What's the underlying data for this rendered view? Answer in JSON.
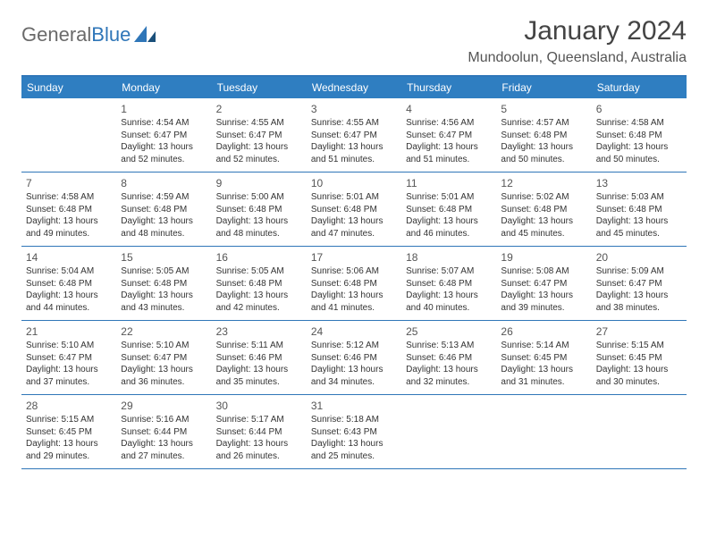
{
  "brand": {
    "part1": "General",
    "part2": "Blue"
  },
  "title": "January 2024",
  "location": "Mundoolun, Queensland, Australia",
  "colors": {
    "accent": "#2f76b8",
    "header_bg": "#2f7ec1",
    "text": "#333333"
  },
  "layout": {
    "columns": 7,
    "rows": 5,
    "first_day_column": 1
  },
  "daysOfWeek": [
    "Sunday",
    "Monday",
    "Tuesday",
    "Wednesday",
    "Thursday",
    "Friday",
    "Saturday"
  ],
  "weeks": [
    [
      null,
      {
        "n": "1",
        "sr": "Sunrise: 4:54 AM",
        "ss": "Sunset: 6:47 PM",
        "d1": "Daylight: 13 hours",
        "d2": "and 52 minutes."
      },
      {
        "n": "2",
        "sr": "Sunrise: 4:55 AM",
        "ss": "Sunset: 6:47 PM",
        "d1": "Daylight: 13 hours",
        "d2": "and 52 minutes."
      },
      {
        "n": "3",
        "sr": "Sunrise: 4:55 AM",
        "ss": "Sunset: 6:47 PM",
        "d1": "Daylight: 13 hours",
        "d2": "and 51 minutes."
      },
      {
        "n": "4",
        "sr": "Sunrise: 4:56 AM",
        "ss": "Sunset: 6:47 PM",
        "d1": "Daylight: 13 hours",
        "d2": "and 51 minutes."
      },
      {
        "n": "5",
        "sr": "Sunrise: 4:57 AM",
        "ss": "Sunset: 6:48 PM",
        "d1": "Daylight: 13 hours",
        "d2": "and 50 minutes."
      },
      {
        "n": "6",
        "sr": "Sunrise: 4:58 AM",
        "ss": "Sunset: 6:48 PM",
        "d1": "Daylight: 13 hours",
        "d2": "and 50 minutes."
      }
    ],
    [
      {
        "n": "7",
        "sr": "Sunrise: 4:58 AM",
        "ss": "Sunset: 6:48 PM",
        "d1": "Daylight: 13 hours",
        "d2": "and 49 minutes."
      },
      {
        "n": "8",
        "sr": "Sunrise: 4:59 AM",
        "ss": "Sunset: 6:48 PM",
        "d1": "Daylight: 13 hours",
        "d2": "and 48 minutes."
      },
      {
        "n": "9",
        "sr": "Sunrise: 5:00 AM",
        "ss": "Sunset: 6:48 PM",
        "d1": "Daylight: 13 hours",
        "d2": "and 48 minutes."
      },
      {
        "n": "10",
        "sr": "Sunrise: 5:01 AM",
        "ss": "Sunset: 6:48 PM",
        "d1": "Daylight: 13 hours",
        "d2": "and 47 minutes."
      },
      {
        "n": "11",
        "sr": "Sunrise: 5:01 AM",
        "ss": "Sunset: 6:48 PM",
        "d1": "Daylight: 13 hours",
        "d2": "and 46 minutes."
      },
      {
        "n": "12",
        "sr": "Sunrise: 5:02 AM",
        "ss": "Sunset: 6:48 PM",
        "d1": "Daylight: 13 hours",
        "d2": "and 45 minutes."
      },
      {
        "n": "13",
        "sr": "Sunrise: 5:03 AM",
        "ss": "Sunset: 6:48 PM",
        "d1": "Daylight: 13 hours",
        "d2": "and 45 minutes."
      }
    ],
    [
      {
        "n": "14",
        "sr": "Sunrise: 5:04 AM",
        "ss": "Sunset: 6:48 PM",
        "d1": "Daylight: 13 hours",
        "d2": "and 44 minutes."
      },
      {
        "n": "15",
        "sr": "Sunrise: 5:05 AM",
        "ss": "Sunset: 6:48 PM",
        "d1": "Daylight: 13 hours",
        "d2": "and 43 minutes."
      },
      {
        "n": "16",
        "sr": "Sunrise: 5:05 AM",
        "ss": "Sunset: 6:48 PM",
        "d1": "Daylight: 13 hours",
        "d2": "and 42 minutes."
      },
      {
        "n": "17",
        "sr": "Sunrise: 5:06 AM",
        "ss": "Sunset: 6:48 PM",
        "d1": "Daylight: 13 hours",
        "d2": "and 41 minutes."
      },
      {
        "n": "18",
        "sr": "Sunrise: 5:07 AM",
        "ss": "Sunset: 6:48 PM",
        "d1": "Daylight: 13 hours",
        "d2": "and 40 minutes."
      },
      {
        "n": "19",
        "sr": "Sunrise: 5:08 AM",
        "ss": "Sunset: 6:47 PM",
        "d1": "Daylight: 13 hours",
        "d2": "and 39 minutes."
      },
      {
        "n": "20",
        "sr": "Sunrise: 5:09 AM",
        "ss": "Sunset: 6:47 PM",
        "d1": "Daylight: 13 hours",
        "d2": "and 38 minutes."
      }
    ],
    [
      {
        "n": "21",
        "sr": "Sunrise: 5:10 AM",
        "ss": "Sunset: 6:47 PM",
        "d1": "Daylight: 13 hours",
        "d2": "and 37 minutes."
      },
      {
        "n": "22",
        "sr": "Sunrise: 5:10 AM",
        "ss": "Sunset: 6:47 PM",
        "d1": "Daylight: 13 hours",
        "d2": "and 36 minutes."
      },
      {
        "n": "23",
        "sr": "Sunrise: 5:11 AM",
        "ss": "Sunset: 6:46 PM",
        "d1": "Daylight: 13 hours",
        "d2": "and 35 minutes."
      },
      {
        "n": "24",
        "sr": "Sunrise: 5:12 AM",
        "ss": "Sunset: 6:46 PM",
        "d1": "Daylight: 13 hours",
        "d2": "and 34 minutes."
      },
      {
        "n": "25",
        "sr": "Sunrise: 5:13 AM",
        "ss": "Sunset: 6:46 PM",
        "d1": "Daylight: 13 hours",
        "d2": "and 32 minutes."
      },
      {
        "n": "26",
        "sr": "Sunrise: 5:14 AM",
        "ss": "Sunset: 6:45 PM",
        "d1": "Daylight: 13 hours",
        "d2": "and 31 minutes."
      },
      {
        "n": "27",
        "sr": "Sunrise: 5:15 AM",
        "ss": "Sunset: 6:45 PM",
        "d1": "Daylight: 13 hours",
        "d2": "and 30 minutes."
      }
    ],
    [
      {
        "n": "28",
        "sr": "Sunrise: 5:15 AM",
        "ss": "Sunset: 6:45 PM",
        "d1": "Daylight: 13 hours",
        "d2": "and 29 minutes."
      },
      {
        "n": "29",
        "sr": "Sunrise: 5:16 AM",
        "ss": "Sunset: 6:44 PM",
        "d1": "Daylight: 13 hours",
        "d2": "and 27 minutes."
      },
      {
        "n": "30",
        "sr": "Sunrise: 5:17 AM",
        "ss": "Sunset: 6:44 PM",
        "d1": "Daylight: 13 hours",
        "d2": "and 26 minutes."
      },
      {
        "n": "31",
        "sr": "Sunrise: 5:18 AM",
        "ss": "Sunset: 6:43 PM",
        "d1": "Daylight: 13 hours",
        "d2": "and 25 minutes."
      },
      null,
      null,
      null
    ]
  ]
}
